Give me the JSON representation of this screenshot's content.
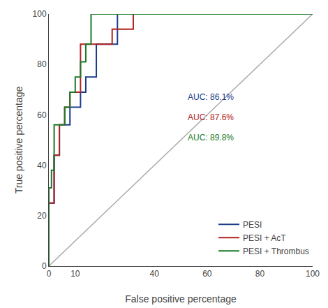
{
  "chart_data": {
    "type": "line",
    "title": "",
    "xlabel": "False positive percentage",
    "ylabel": "True positive percentage",
    "xlim": [
      0,
      100
    ],
    "ylim": [
      0,
      100
    ],
    "xticks": [
      0,
      10,
      40,
      60,
      80,
      100
    ],
    "yticks": [
      0,
      20,
      40,
      60,
      80,
      100
    ],
    "grid": false,
    "legend": "lower right",
    "series": [
      {
        "color": "#aaaaaa",
        "x": [
          0,
          100
        ],
        "values": [
          0,
          100
        ]
      },
      {
        "name": "PESI",
        "color": "#1a3c8c",
        "x": [
          0,
          0,
          2,
          2,
          4,
          4,
          6,
          6,
          8,
          8,
          10,
          10,
          12,
          12,
          14,
          14,
          18,
          18,
          22,
          22,
          26,
          26,
          30,
          30,
          34,
          34,
          100
        ],
        "values": [
          0,
          25,
          25,
          44,
          44,
          56,
          56,
          56,
          56,
          63,
          63,
          63,
          63,
          69,
          69,
          75,
          75,
          88,
          88,
          88,
          88,
          100,
          100,
          100,
          100,
          100,
          100
        ]
      },
      {
        "name": "PESI + AcT",
        "color": "#b22222",
        "x": [
          0,
          0,
          2,
          2,
          4,
          4,
          6,
          6,
          8,
          8,
          10,
          10,
          12,
          12,
          16,
          16,
          20,
          20,
          24,
          24,
          28,
          28,
          32,
          32,
          36,
          36,
          50,
          50,
          100
        ],
        "values": [
          0,
          25,
          25,
          44,
          44,
          56,
          56,
          63,
          63,
          69,
          69,
          69,
          69,
          88,
          88,
          88,
          88,
          88,
          88,
          94,
          94,
          94,
          94,
          100,
          100,
          100,
          100,
          100,
          100
        ]
      },
      {
        "name": "PESI + Thrombus",
        "color": "#1a7a2a",
        "x": [
          0,
          0,
          1,
          1,
          2,
          2,
          4,
          4,
          6,
          6,
          8,
          8,
          10,
          10,
          12,
          12,
          14,
          14,
          16,
          16,
          20,
          20,
          30,
          30,
          100
        ],
        "values": [
          0,
          31,
          31,
          38,
          38,
          56,
          56,
          56,
          56,
          63,
          63,
          69,
          69,
          75,
          75,
          81,
          81,
          88,
          88,
          100,
          100,
          100,
          100,
          100,
          100
        ]
      }
    ],
    "annotations": [
      {
        "text": "AUC: 86.1%",
        "x": 52,
        "y": 67,
        "color": "#1a3c8c"
      },
      {
        "text": "AUC: 87.6%",
        "x": 52,
        "y": 59,
        "color": "#b22222"
      },
      {
        "text": "AUC: 89.8%",
        "x": 52,
        "y": 51,
        "color": "#1a7a2a"
      }
    ]
  }
}
